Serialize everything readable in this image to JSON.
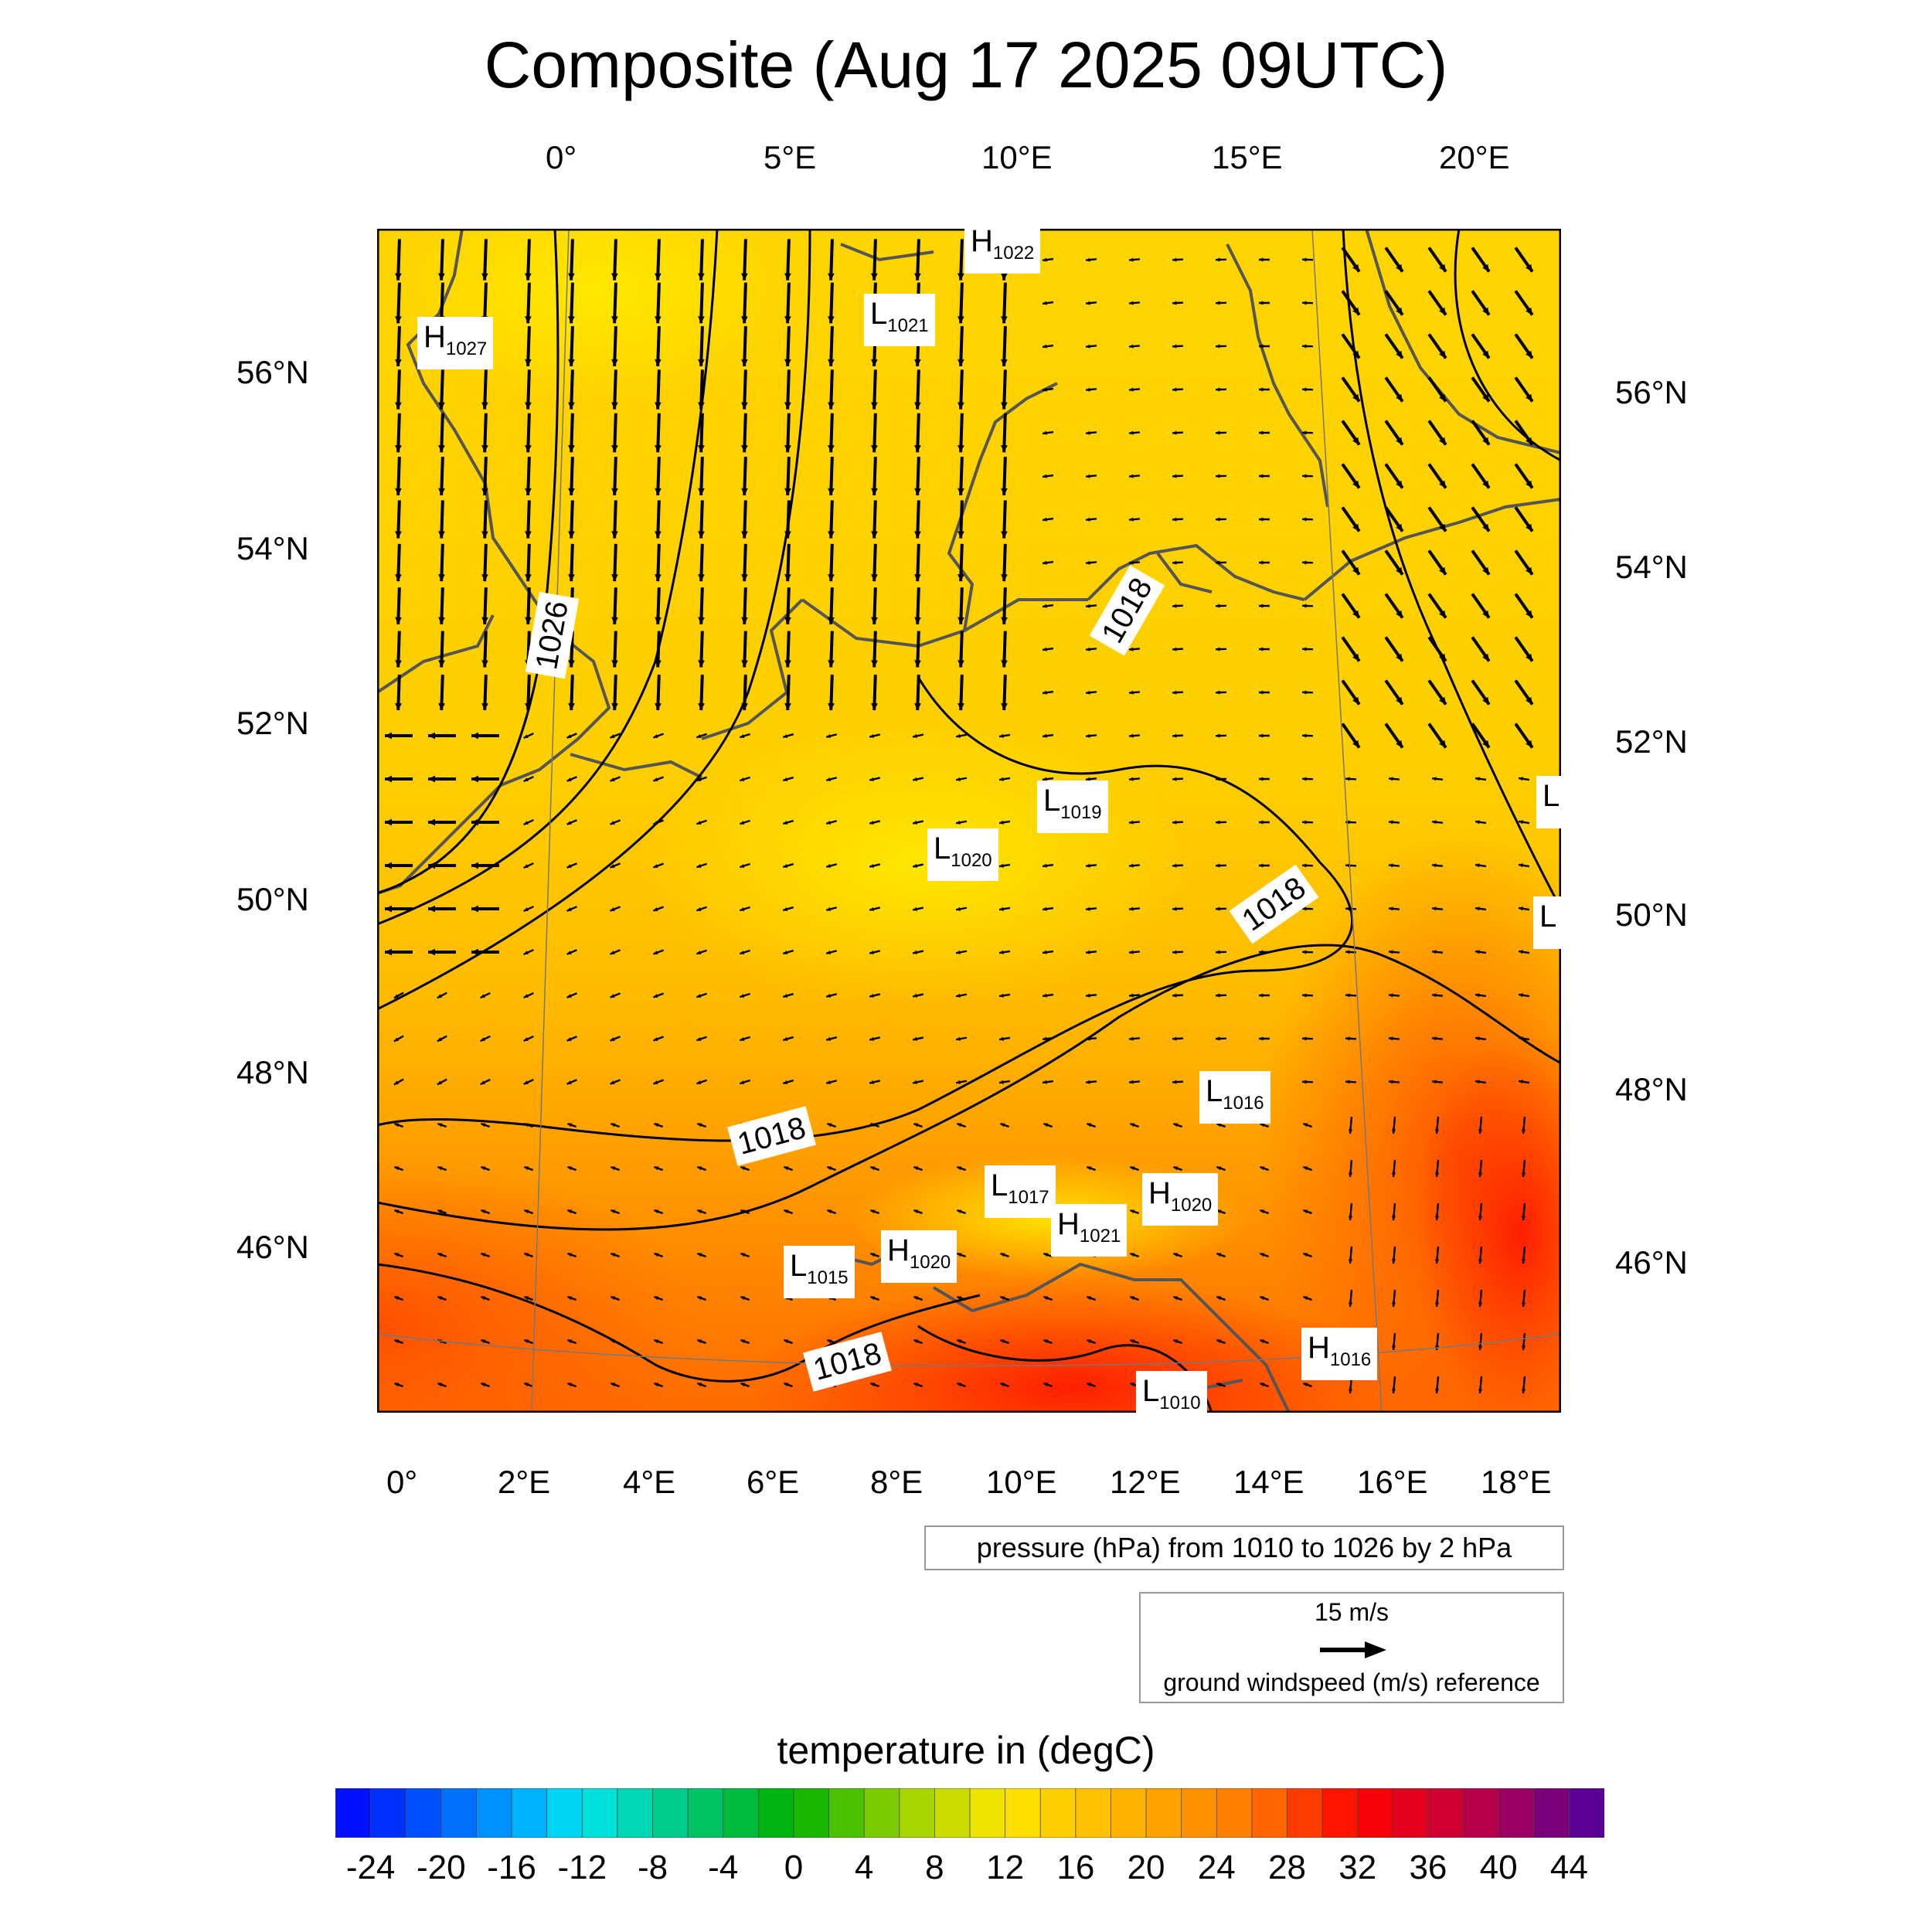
{
  "title": "Composite (Aug 17 2025 09UTC)",
  "top_lon_labels": [
    {
      "text": "0°",
      "lon": 0
    },
    {
      "text": "5°E",
      "lon": 5
    },
    {
      "text": "10°E",
      "lon": 10
    },
    {
      "text": "15°E",
      "lon": 15
    },
    {
      "text": "20°E",
      "lon": 20
    }
  ],
  "bottom_lon_labels": [
    {
      "text": "0°",
      "lon": 0
    },
    {
      "text": "2°E",
      "lon": 2
    },
    {
      "text": "4°E",
      "lon": 4
    },
    {
      "text": "6°E",
      "lon": 6
    },
    {
      "text": "8°E",
      "lon": 8
    },
    {
      "text": "10°E",
      "lon": 10
    },
    {
      "text": "12°E",
      "lon": 12
    },
    {
      "text": "14°E",
      "lon": 14
    },
    {
      "text": "16°E",
      "lon": 16
    },
    {
      "text": "18°E",
      "lon": 18
    }
  ],
  "left_lat_labels": [
    "56°N",
    "54°N",
    "52°N",
    "50°N",
    "48°N",
    "46°N"
  ],
  "right_lat_labels": [
    "56°N",
    "54°N",
    "52°N",
    "50°N",
    "48°N",
    "46°N"
  ],
  "isobar_labels": [
    "1026",
    "1018",
    "1018",
    "1018",
    "1018"
  ],
  "pressure_centers": [
    {
      "type": "H",
      "value": "1027"
    },
    {
      "type": "H",
      "value": "1022"
    },
    {
      "type": "L",
      "value": "1021"
    },
    {
      "type": "L",
      "value": "1019"
    },
    {
      "type": "L",
      "value": "1020"
    },
    {
      "type": "L",
      "value": "1016"
    },
    {
      "type": "L",
      "value": "1017"
    },
    {
      "type": "H",
      "value": "1020"
    },
    {
      "type": "H",
      "value": "1021"
    },
    {
      "type": "H",
      "value": "1020"
    },
    {
      "type": "L",
      "value": "1015"
    },
    {
      "type": "H",
      "value": "1016"
    },
    {
      "type": "L",
      "value": "1010"
    },
    {
      "type": "L",
      "value": ""
    },
    {
      "type": "L",
      "value": ""
    }
  ],
  "contour_info": "pressure (hPa) from 1010 to 1026 by 2 hPa",
  "wind_reference": {
    "speed": "15 m/s",
    "label": "ground windspeed (m/s) reference"
  },
  "colorbar": {
    "title": "temperature in (degC)",
    "min": -26,
    "max": 46,
    "step": 2,
    "tick_labels": [
      "-24",
      "-20",
      "-16",
      "-12",
      "-8",
      "-4",
      "0",
      "4",
      "8",
      "12",
      "16",
      "20",
      "24",
      "28",
      "32",
      "36",
      "40",
      "44"
    ]
  },
  "colors": {
    "cold": "#0000ff",
    "zero": "#00b000",
    "mild": "#ffe000",
    "warm": "#ff9000",
    "hot": "#ff0000",
    "extreme": "#4b0082",
    "coastline": "#555555",
    "isobar": "#000000"
  }
}
